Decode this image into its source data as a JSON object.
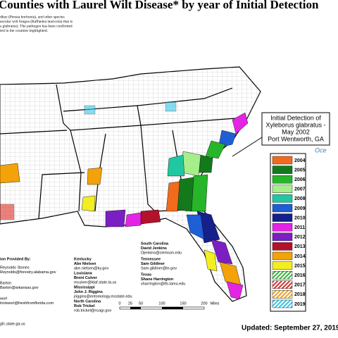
{
  "title": "Counties with Laurel Wilt Disease* by year of Initial Detection",
  "description": [
    "dbay (Persea borbonia), and other species",
    "ascular wilt fungus (Raffaelea lauricola) that is",
    "s glabratus). The pathogen has been confirmed",
    "ted in the counties highlighted."
  ],
  "callout": [
    "Initial Detection of",
    "Xyleborus glabratus -",
    "May 2002",
    "Port Wentworth, GA"
  ],
  "ocean_label": "Oce",
  "legend": [
    {
      "label": "2004",
      "color": "#f26b1d",
      "hatch": false
    },
    {
      "label": "2005",
      "color": "#137a1c",
      "hatch": false
    },
    {
      "label": "2006",
      "color": "#27b52a",
      "hatch": false
    },
    {
      "label": "2007",
      "color": "#a6ee8c",
      "hatch": false
    },
    {
      "label": "2008",
      "color": "#1fc7a2",
      "hatch": false
    },
    {
      "label": "2009",
      "color": "#1f5fd6",
      "hatch": false
    },
    {
      "label": "2010",
      "color": "#16208a",
      "hatch": false
    },
    {
      "label": "2011",
      "color": "#e424e4",
      "hatch": false
    },
    {
      "label": "2012",
      "color": "#7b1fc4",
      "hatch": false
    },
    {
      "label": "2013",
      "color": "#b3122a",
      "hatch": false
    },
    {
      "label": "2014",
      "color": "#f3a20a",
      "hatch": false
    },
    {
      "label": "2015",
      "color": "#f2ee20",
      "hatch": false
    },
    {
      "label": "2016",
      "color": "#3cb43c",
      "hatch": true
    },
    {
      "label": "2017",
      "color": "#e0302a",
      "hatch": true
    },
    {
      "label": "2018",
      "color": "#f0a020",
      "hatch": true
    },
    {
      "label": "2019",
      "color": "#38c8e8",
      "hatch": true
    }
  ],
  "providers_heading": "ion Provided By:",
  "providers": [
    [
      "Reynolds Stones",
      "Reynolds@forestry.alabama.gov"
    ],
    [
      "Barton",
      "Barton@arkansas.gov"
    ],
    [
      "worl",
      "trickwort@freshfromflorida.com"
    ],
    [
      "gfc.state.ga.us"
    ],
    [
      "Kentucky",
      "Abe Nielsen",
      "abe.nielsen@ky.gov"
    ],
    [
      "Louisiana",
      "Brent Culver",
      "mculver@ldaf.state.la.us"
    ],
    [
      "Mississippi",
      "John J. Riggins",
      "jriggins@entomology.msstate.edu"
    ],
    [
      "North Carolina",
      "Rob Trickel",
      "rob.trickel@ncagr.gov"
    ],
    [
      "South Carolina",
      "David Jenkins",
      "Djenkins@clemson.edu"
    ],
    [
      "Tennessee",
      "Sam Gildiner",
      "Sam.gildiner@tn.gov"
    ],
    [
      "Texas",
      "Shane Harrington",
      "sharrington@tfs.tamu.edu"
    ]
  ],
  "scale": [
    "0",
    "25",
    "50",
    "100",
    "150",
    "200",
    "Miles"
  ],
  "updated": "Updated: September 27, 2019"
}
